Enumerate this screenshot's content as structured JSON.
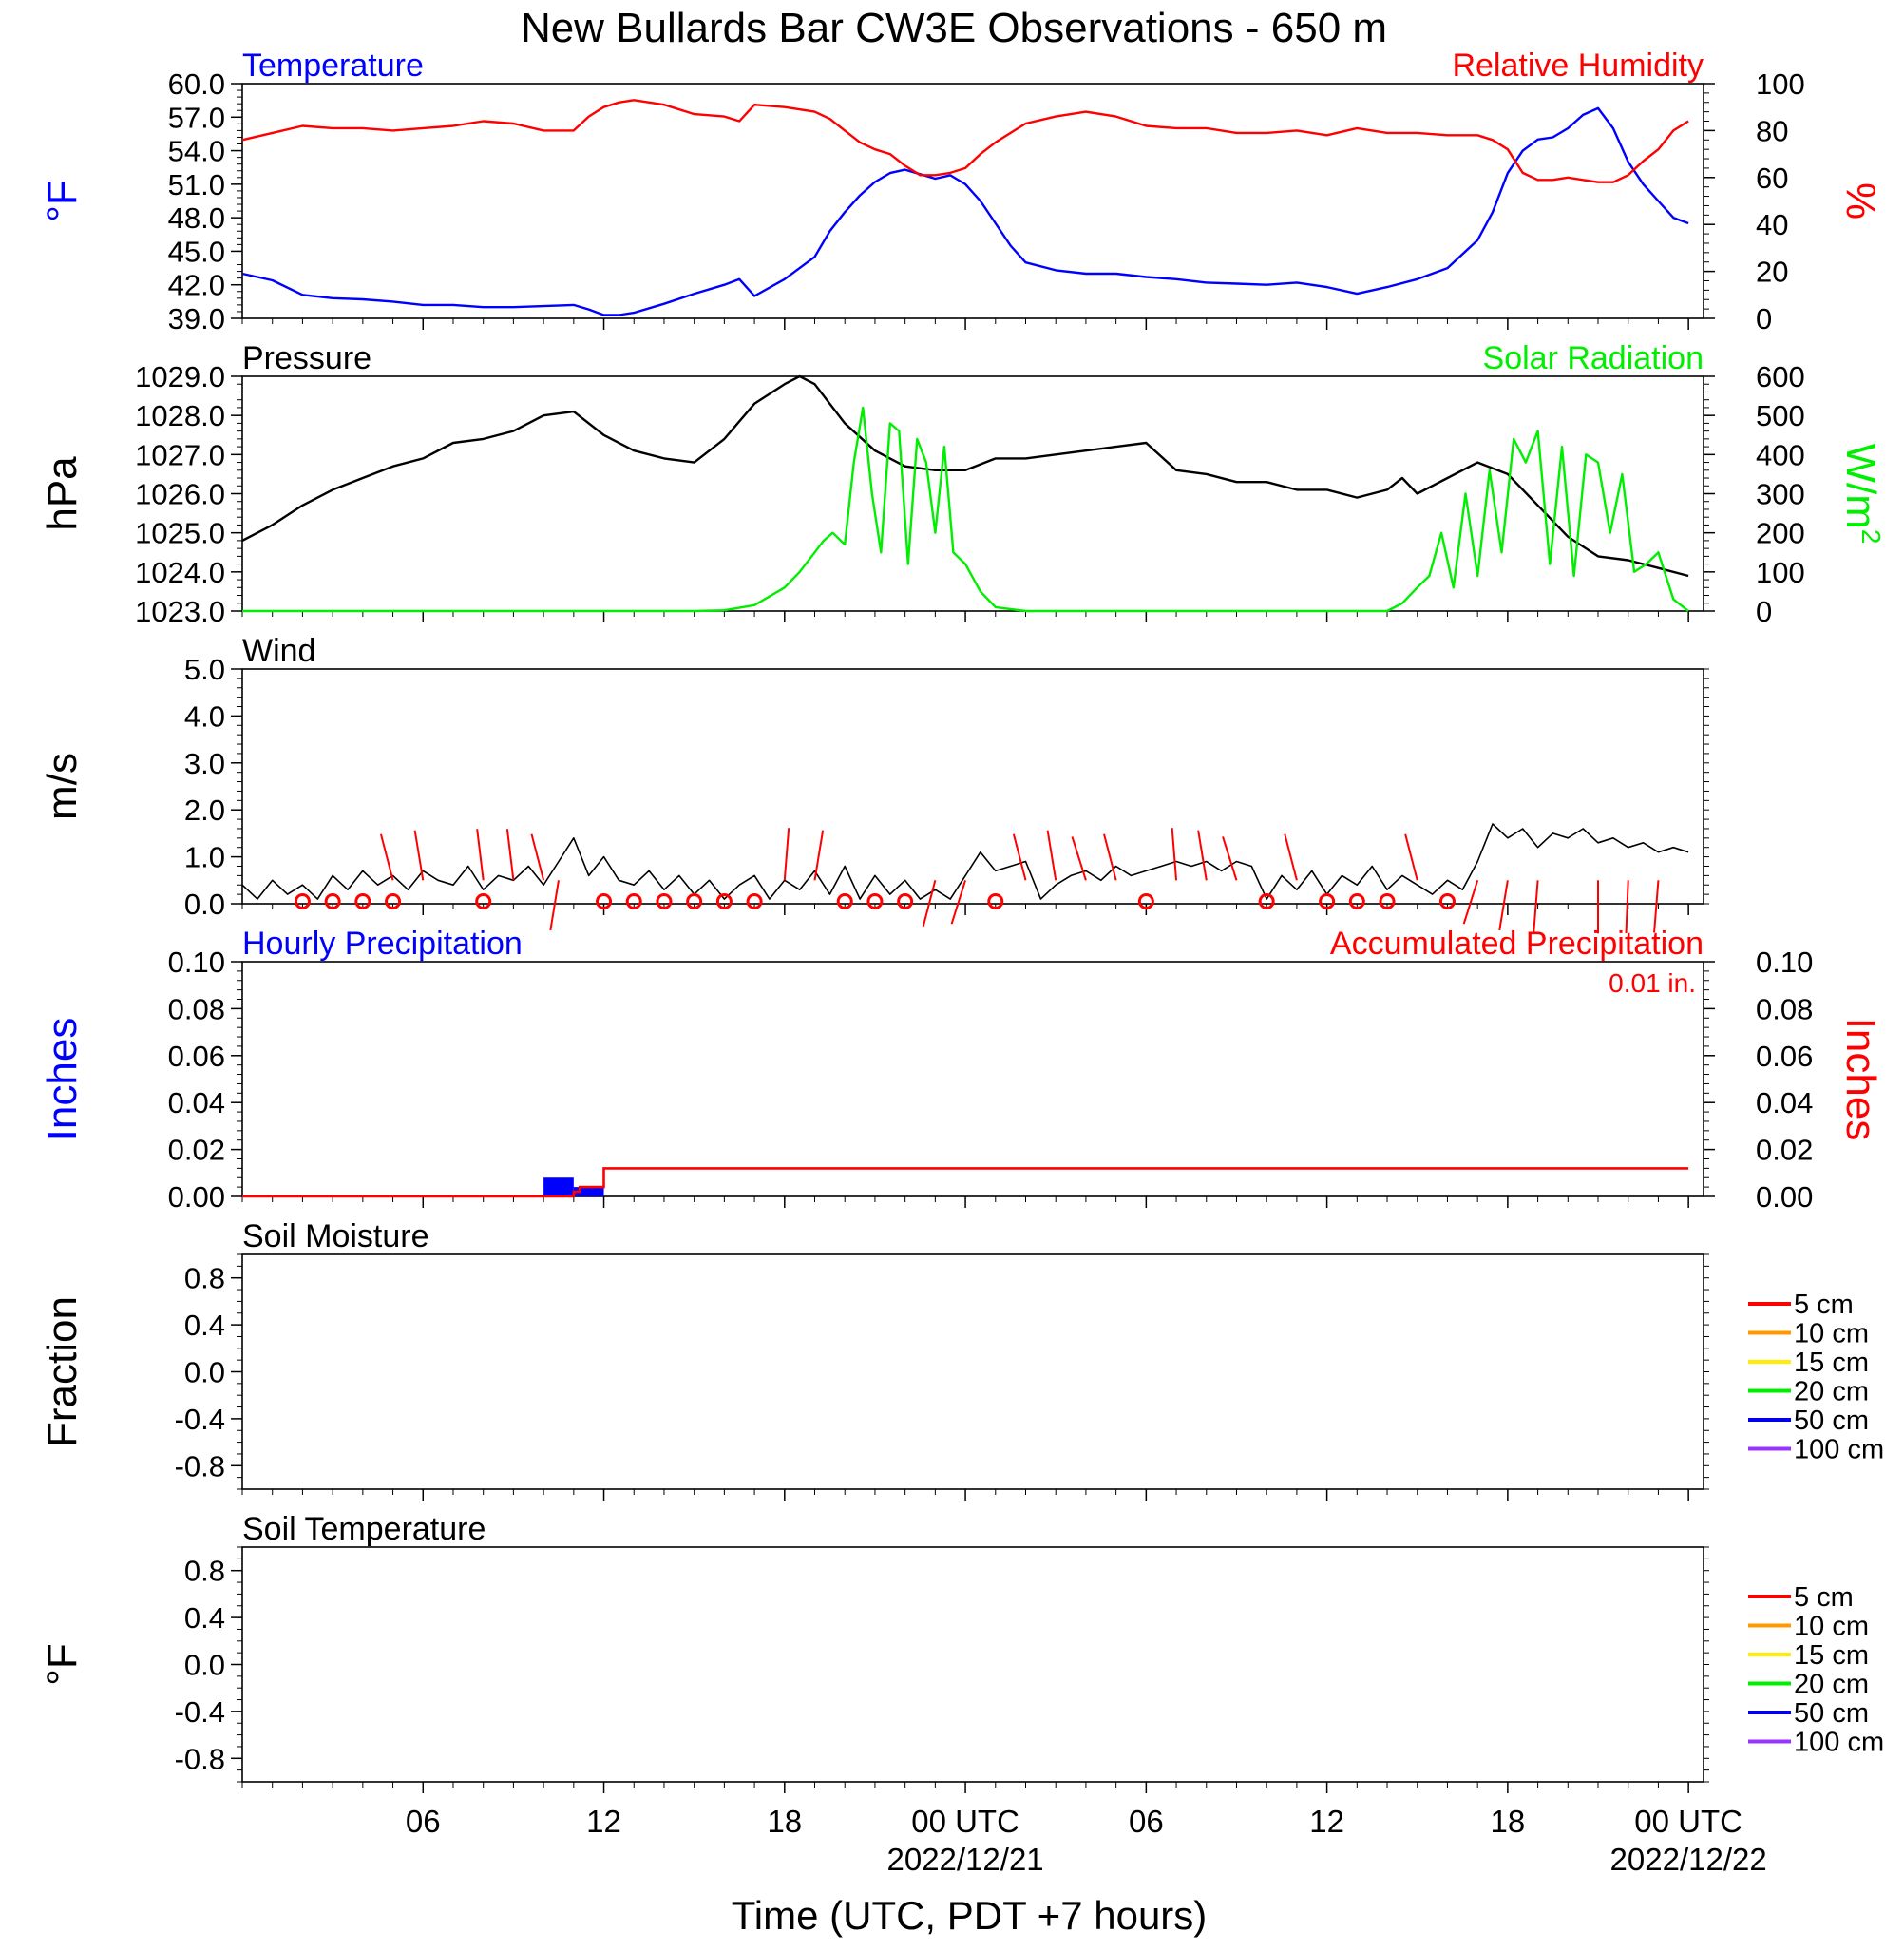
{
  "title": "New Bullards Bar CW3E Observations - 650 m",
  "xlabel": "Time (UTC, PDT +7 hours)",
  "colors": {
    "temperature": "#0000ff",
    "humidity": "#ff0000",
    "pressure": "#000000",
    "solar": "#00ee00",
    "wind": "#000000",
    "barbs": "#ff0000",
    "precip_hourly": "#0000ff",
    "precip_accum": "#ff0000"
  },
  "x_ticks": [
    {
      "hours": 6,
      "label": "06",
      "date": ""
    },
    {
      "hours": 12,
      "label": "12",
      "date": ""
    },
    {
      "hours": 18,
      "label": "18",
      "date": ""
    },
    {
      "hours": 24,
      "label": "00 UTC",
      "date": "2022/12/21"
    },
    {
      "hours": 30,
      "label": "06",
      "date": ""
    },
    {
      "hours": 36,
      "label": "12",
      "date": ""
    },
    {
      "hours": 42,
      "label": "18",
      "date": ""
    },
    {
      "hours": 48,
      "label": "00 UTC",
      "date": "2022/12/22"
    }
  ],
  "chart_data": [
    {
      "type": "line",
      "panel": "temperature_humidity",
      "title_left": "Temperature",
      "title_right": "Relative Humidity",
      "ylabel_left": "°F",
      "ylabel_right": "%",
      "ylim_left": [
        39,
        60
      ],
      "yticks_left": [
        "60.0",
        "57.0",
        "54.0",
        "51.0",
        "48.0",
        "45.0",
        "42.0",
        "39.0"
      ],
      "ylim_right": [
        0,
        100
      ],
      "yticks_right": [
        "100",
        "80",
        "60",
        "40",
        "20",
        "0"
      ],
      "series": [
        {
          "name": "Temperature",
          "axis": "left",
          "x_hours": [
            0,
            1,
            2,
            3,
            4,
            5,
            6,
            7,
            8,
            9,
            10,
            11,
            11.5,
            12,
            12.5,
            13,
            14,
            15,
            16,
            16.5,
            17,
            18,
            19,
            19.5,
            20,
            20.5,
            21,
            21.5,
            22,
            22.5,
            23,
            23.5,
            24,
            24.5,
            25,
            25.5,
            26,
            27,
            28,
            29,
            30,
            31,
            32,
            33,
            34,
            35,
            36,
            37,
            38,
            39,
            40,
            41,
            41.5,
            42,
            42.5,
            43,
            43.5,
            44,
            44.5,
            45,
            45.5,
            46,
            46.5,
            47,
            47.5,
            48
          ],
          "values": [
            43.0,
            42.4,
            41.1,
            40.8,
            40.7,
            40.5,
            40.2,
            40.2,
            40.0,
            40.0,
            40.1,
            40.2,
            39.8,
            39.3,
            39.3,
            39.5,
            40.3,
            41.2,
            42.0,
            42.5,
            41.0,
            42.5,
            44.5,
            46.8,
            48.5,
            50.0,
            51.2,
            52.0,
            52.3,
            51.9,
            51.5,
            51.8,
            51.0,
            49.5,
            47.5,
            45.5,
            44.0,
            43.3,
            43.0,
            43.0,
            42.7,
            42.5,
            42.2,
            42.1,
            42.0,
            42.2,
            41.8,
            41.2,
            41.8,
            42.5,
            43.5,
            46.0,
            48.5,
            52.0,
            54.0,
            55.0,
            55.2,
            56.0,
            57.2,
            57.8,
            56.0,
            53.0,
            51.0,
            49.5,
            48.0,
            47.5
          ]
        },
        {
          "name": "Relative Humidity",
          "axis": "right",
          "x_hours": [
            0,
            1,
            2,
            3,
            4,
            5,
            6,
            7,
            8,
            9,
            10,
            11,
            11.5,
            12,
            12.5,
            13,
            14,
            15,
            16,
            16.5,
            17,
            18,
            19,
            19.5,
            20,
            20.5,
            21,
            21.5,
            22,
            22.5,
            23,
            23.5,
            24,
            24.5,
            25,
            25.5,
            26,
            27,
            28,
            29,
            30,
            31,
            32,
            33,
            34,
            35,
            36,
            37,
            38,
            39,
            40,
            41,
            41.5,
            42,
            42.5,
            43,
            43.5,
            44,
            44.5,
            45,
            45.5,
            46,
            46.5,
            47,
            47.5,
            48
          ],
          "values": [
            76,
            79,
            82,
            81,
            81,
            80,
            81,
            82,
            84,
            83,
            80,
            80,
            86,
            90,
            92,
            93,
            91,
            87,
            86,
            84,
            91,
            90,
            88,
            85,
            80,
            75,
            72,
            70,
            65,
            61,
            61,
            62,
            64,
            70,
            75,
            79,
            83,
            86,
            88,
            86,
            82,
            81,
            81,
            79,
            79,
            80,
            78,
            81,
            79,
            79,
            78,
            78,
            76,
            72,
            62,
            59,
            59,
            60,
            59,
            58,
            58,
            61,
            67,
            72,
            80,
            84
          ]
        }
      ]
    },
    {
      "type": "line",
      "panel": "pressure_solar",
      "title_left": "Pressure",
      "title_right": "Solar Radiation",
      "ylabel_left": "hPa",
      "ylabel_right": "W/m",
      "ylabel_right_sup": "2",
      "ylim_left": [
        1023,
        1029
      ],
      "yticks_left": [
        "1029.0",
        "1028.0",
        "1027.0",
        "1026.0",
        "1025.0",
        "1024.0",
        "1023.0"
      ],
      "ylim_right": [
        0,
        600
      ],
      "yticks_right": [
        "600",
        "500",
        "400",
        "300",
        "200",
        "100",
        "0"
      ],
      "series": [
        {
          "name": "Pressure",
          "axis": "left",
          "x_hours": [
            0,
            1,
            2,
            3,
            4,
            5,
            6,
            7,
            8,
            9,
            10,
            11,
            12,
            13,
            14,
            15,
            16,
            17,
            18,
            18.5,
            19,
            20,
            21,
            22,
            23,
            24,
            25,
            26,
            27,
            28,
            29,
            30,
            31,
            32,
            33,
            34,
            35,
            36,
            37,
            38,
            38.5,
            39,
            40,
            41,
            42,
            43,
            44,
            45,
            46,
            47,
            48
          ],
          "values": [
            1024.8,
            1025.2,
            1025.7,
            1026.1,
            1026.4,
            1026.7,
            1026.9,
            1027.3,
            1027.4,
            1027.6,
            1028.0,
            1028.1,
            1027.5,
            1027.1,
            1026.9,
            1026.8,
            1027.4,
            1028.3,
            1028.8,
            1029.0,
            1028.8,
            1027.8,
            1027.1,
            1026.7,
            1026.6,
            1026.6,
            1026.9,
            1026.9,
            1027.0,
            1027.1,
            1027.2,
            1027.3,
            1026.6,
            1026.5,
            1026.3,
            1026.3,
            1026.1,
            1026.1,
            1025.9,
            1026.1,
            1026.4,
            1026.0,
            1026.4,
            1026.8,
            1026.5,
            1025.7,
            1024.9,
            1024.4,
            1024.3,
            1024.1,
            1023.9
          ]
        },
        {
          "name": "Solar Radiation",
          "axis": "right",
          "x_hours": [
            0,
            14,
            15,
            16,
            17,
            18,
            18.5,
            19,
            19.3,
            19.6,
            20,
            20.3,
            20.6,
            20.9,
            21.2,
            21.5,
            21.8,
            22.1,
            22.4,
            22.7,
            23,
            23.3,
            23.6,
            24,
            24.5,
            25,
            26,
            38,
            38.5,
            39,
            39.4,
            39.8,
            40.2,
            40.6,
            41,
            41.4,
            41.8,
            42.2,
            42.6,
            43,
            43.4,
            43.8,
            44.2,
            44.6,
            45,
            45.4,
            45.8,
            46.2,
            46.6,
            47,
            47.5,
            48
          ],
          "values": [
            0,
            0,
            0,
            2,
            15,
            60,
            100,
            150,
            180,
            200,
            170,
            380,
            520,
            300,
            150,
            480,
            460,
            120,
            440,
            380,
            200,
            420,
            150,
            120,
            50,
            10,
            0,
            0,
            20,
            60,
            90,
            200,
            60,
            300,
            90,
            360,
            150,
            440,
            380,
            460,
            120,
            420,
            90,
            400,
            380,
            200,
            350,
            100,
            120,
            150,
            30,
            0
          ]
        }
      ]
    },
    {
      "type": "line",
      "panel": "wind",
      "title_left": "Wind",
      "ylabel_left": "m/s",
      "ylim_left": [
        0,
        5
      ],
      "yticks_left": [
        "5.0",
        "4.0",
        "3.0",
        "2.0",
        "1.0",
        "0.0"
      ],
      "series": [
        {
          "name": "Wind",
          "axis": "left",
          "x_hours": [
            0,
            0.5,
            1,
            1.5,
            2,
            2.5,
            3,
            3.5,
            4,
            4.5,
            5,
            5.5,
            6,
            6.5,
            7,
            7.5,
            8,
            8.5,
            9,
            9.5,
            10,
            10.5,
            11,
            11.5,
            12,
            12.5,
            13,
            13.5,
            14,
            14.5,
            15,
            15.5,
            16,
            16.5,
            17,
            17.5,
            18,
            18.5,
            19,
            19.5,
            20,
            20.5,
            21,
            21.5,
            22,
            22.5,
            23,
            23.5,
            24,
            24.5,
            25,
            25.5,
            26,
            26.5,
            27,
            27.5,
            28,
            28.5,
            29,
            29.5,
            30,
            30.5,
            31,
            31.5,
            32,
            32.5,
            33,
            33.5,
            34,
            34.5,
            35,
            35.5,
            36,
            36.5,
            37,
            37.5,
            38,
            38.5,
            39,
            39.5,
            40,
            40.5,
            41,
            41.5,
            42,
            42.5,
            43,
            43.5,
            44,
            44.5,
            45,
            45.5,
            46,
            46.5,
            47,
            47.5,
            48
          ],
          "values": [
            0.4,
            0.1,
            0.5,
            0.2,
            0.4,
            0.1,
            0.6,
            0.3,
            0.7,
            0.4,
            0.6,
            0.3,
            0.7,
            0.5,
            0.4,
            0.8,
            0.3,
            0.6,
            0.5,
            0.8,
            0.4,
            0.9,
            1.4,
            0.6,
            1.0,
            0.5,
            0.4,
            0.7,
            0.3,
            0.6,
            0.2,
            0.5,
            0.1,
            0.4,
            0.6,
            0.1,
            0.5,
            0.3,
            0.7,
            0.2,
            0.8,
            0.1,
            0.6,
            0.2,
            0.5,
            0.1,
            0.3,
            0.1,
            0.6,
            1.1,
            0.7,
            0.8,
            0.9,
            0.1,
            0.4,
            0.6,
            0.7,
            0.5,
            0.8,
            0.6,
            0.7,
            0.8,
            0.9,
            0.8,
            0.9,
            0.7,
            0.9,
            0.8,
            0.1,
            0.6,
            0.3,
            0.7,
            0.2,
            0.6,
            0.4,
            0.8,
            0.3,
            0.6,
            0.4,
            0.2,
            0.5,
            0.3,
            0.9,
            1.7,
            1.4,
            1.6,
            1.2,
            1.5,
            1.4,
            1.6,
            1.3,
            1.4,
            1.2,
            1.3,
            1.1,
            1.2,
            1.1
          ]
        }
      ],
      "calm_hours": [
        2,
        3,
        4,
        5,
        8,
        12,
        13,
        14,
        15,
        16,
        17,
        20,
        21,
        22,
        25,
        30,
        34,
        36,
        37,
        38,
        40
      ],
      "barbs": [
        {
          "x_hours": 5,
          "dir_deg": 330
        },
        {
          "x_hours": 6,
          "dir_deg": 340
        },
        {
          "x_hours": 8,
          "dir_deg": 345
        },
        {
          "x_hours": 9,
          "dir_deg": 345
        },
        {
          "x_hours": 10,
          "dir_deg": 330
        },
        {
          "x_hours": 10.5,
          "dir_deg": 200
        },
        {
          "x_hours": 18,
          "dir_deg": 10
        },
        {
          "x_hours": 19,
          "dir_deg": 20
        },
        {
          "x_hours": 23,
          "dir_deg": 210
        },
        {
          "x_hours": 24,
          "dir_deg": 215
        },
        {
          "x_hours": 26,
          "dir_deg": 330
        },
        {
          "x_hours": 27,
          "dir_deg": 340
        },
        {
          "x_hours": 28,
          "dir_deg": 325
        },
        {
          "x_hours": 29,
          "dir_deg": 330
        },
        {
          "x_hours": 31,
          "dir_deg": 350
        },
        {
          "x_hours": 32,
          "dir_deg": 340
        },
        {
          "x_hours": 33,
          "dir_deg": 325
        },
        {
          "x_hours": 35,
          "dir_deg": 330
        },
        {
          "x_hours": 39,
          "dir_deg": 330
        },
        {
          "x_hours": 41,
          "dir_deg": 215
        },
        {
          "x_hours": 42,
          "dir_deg": 200
        },
        {
          "x_hours": 43,
          "dir_deg": 190
        },
        {
          "x_hours": 45,
          "dir_deg": 180
        },
        {
          "x_hours": 46,
          "dir_deg": 185
        },
        {
          "x_hours": 47,
          "dir_deg": 190
        }
      ]
    },
    {
      "type": "bar",
      "panel": "precipitation",
      "title_left": "Hourly Precipitation",
      "title_right": "Accumulated Precipitation",
      "total_label": "0.01 in.",
      "ylabel_left": "Inches",
      "ylabel_right": "Inches",
      "ylim_left": [
        0,
        0.1
      ],
      "ylim_right": [
        0,
        0.1
      ],
      "yticks_left": [
        "0.10",
        "0.08",
        "0.06",
        "0.04",
        "0.02",
        "0.00"
      ],
      "yticks_right": [
        "0.10",
        "0.08",
        "0.06",
        "0.04",
        "0.02",
        "0.00"
      ],
      "hourly": [
        {
          "start_hours": 10,
          "end_hours": 11,
          "value": 0.008
        },
        {
          "start_hours": 11,
          "end_hours": 12,
          "value": 0.004
        }
      ],
      "accumulated": {
        "x_hours": [
          0,
          10.5,
          11,
          11.2,
          11.5,
          12,
          48
        ],
        "values": [
          0,
          0,
          0.002,
          0.004,
          0.004,
          0.012,
          0.012
        ]
      }
    },
    {
      "type": "line",
      "panel": "soil_moisture",
      "title_left": "Soil Moisture",
      "ylabel_left": "Fraction",
      "ylim_left": [
        -1,
        1
      ],
      "yticks_left": [
        "0.8",
        "0.4",
        "0.0",
        "-0.4",
        "-0.8"
      ],
      "legend": [
        {
          "label": "5 cm",
          "color": "#ff0000"
        },
        {
          "label": "10 cm",
          "color": "#ff9900"
        },
        {
          "label": "15 cm",
          "color": "#ffee00"
        },
        {
          "label": "20 cm",
          "color": "#00ee00"
        },
        {
          "label": "50 cm",
          "color": "#0000ee"
        },
        {
          "label": "100 cm",
          "color": "#9933ff"
        }
      ],
      "series": []
    },
    {
      "type": "line",
      "panel": "soil_temperature",
      "title_left": "Soil Temperature",
      "ylabel_left": "°F",
      "ylim_left": [
        -1,
        1
      ],
      "yticks_left": [
        "0.8",
        "0.4",
        "0.0",
        "-0.4",
        "-0.8"
      ],
      "legend": [
        {
          "label": "5 cm",
          "color": "#ff0000"
        },
        {
          "label": "10 cm",
          "color": "#ff9900"
        },
        {
          "label": "15 cm",
          "color": "#ffee00"
        },
        {
          "label": "20 cm",
          "color": "#00ee00"
        },
        {
          "label": "50 cm",
          "color": "#0000ee"
        },
        {
          "label": "100 cm",
          "color": "#9933ff"
        }
      ],
      "series": []
    }
  ]
}
